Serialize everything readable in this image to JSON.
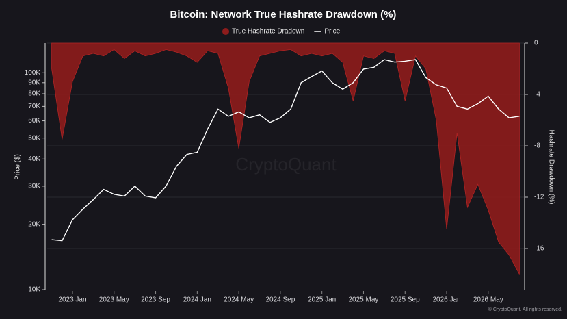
{
  "chart_data": {
    "type": "line",
    "title": "Bitcoin: Network True Hashrate Drawdown (%)",
    "y_label": "Price ($)",
    "y2_label": "Hashrate Drawdown (%)",
    "watermark": "CryptoQuant",
    "credit": "© CryptoQuant. All rights reserved.",
    "categories": [
      null,
      null,
      "2023 Jan",
      null,
      null,
      null,
      "2023 May",
      null,
      null,
      null,
      "2023 Sep",
      null,
      null,
      null,
      "2024 Jan",
      null,
      null,
      null,
      "2024 May",
      null,
      null,
      null,
      "2024 Sep",
      null,
      null,
      null,
      "2025 Jan",
      null,
      null,
      null,
      "2025 May",
      null,
      null,
      null,
      "2025 Sep",
      null,
      null,
      null,
      "2026 Jan",
      null,
      null,
      null,
      "2026 May",
      null,
      null,
      null
    ],
    "ylog": true,
    "ylim": [
      10000,
      137000
    ],
    "yticks": [
      {
        "value": 10000,
        "label": "10K"
      },
      {
        "value": 20000,
        "label": "20K"
      },
      {
        "value": 30000,
        "label": "30K"
      },
      {
        "value": 40000,
        "label": "40K"
      },
      {
        "value": 50000,
        "label": "50K"
      },
      {
        "value": 60000,
        "label": "60K"
      },
      {
        "value": 70000,
        "label": "70K"
      },
      {
        "value": 80000,
        "label": "80K"
      },
      {
        "value": 90000,
        "label": "90K"
      },
      {
        "value": 100000,
        "label": "100K"
      }
    ],
    "y2lim": [
      -19.2,
      0
    ],
    "y2ticks": [
      0,
      -4,
      -8,
      -12,
      -16
    ],
    "grid": true,
    "legend": "top",
    "series": [
      {
        "name": "True Hashrate Dradown",
        "color": "#8e1c1c",
        "type": "area",
        "axis": "y2",
        "values": [
          -2,
          -7.5,
          -3,
          -1,
          -0.8,
          -1,
          -0.5,
          -1.2,
          -0.6,
          -1,
          -0.8,
          -0.5,
          -0.7,
          -1,
          -1.5,
          -0.6,
          -0.8,
          -3.5,
          -8.2,
          -3,
          -1,
          -0.8,
          -0.6,
          -0.5,
          -1,
          -0.8,
          -1,
          -0.8,
          -1.5,
          -4.5,
          -1,
          -1.2,
          -0.6,
          -0.8,
          -4.5,
          -1,
          -2,
          -6,
          -14.5,
          -7,
          -12.8,
          -11,
          -13,
          -15.5,
          -16.5,
          -18
        ]
      },
      {
        "name": "Price",
        "color": "#ffffff",
        "type": "line",
        "values": [
          17000,
          16800,
          21000,
          23500,
          26000,
          29000,
          27500,
          27000,
          30000,
          27000,
          26500,
          30000,
          37000,
          42000,
          43000,
          55000,
          68000,
          63000,
          66000,
          62000,
          64000,
          59000,
          62000,
          68000,
          90000,
          96000,
          102000,
          90000,
          84000,
          90000,
          104000,
          106000,
          115000,
          112000,
          113000,
          115000,
          95000,
          88000,
          85000,
          70000,
          68000,
          72000,
          78000,
          68000,
          62000,
          63000
        ]
      }
    ]
  }
}
